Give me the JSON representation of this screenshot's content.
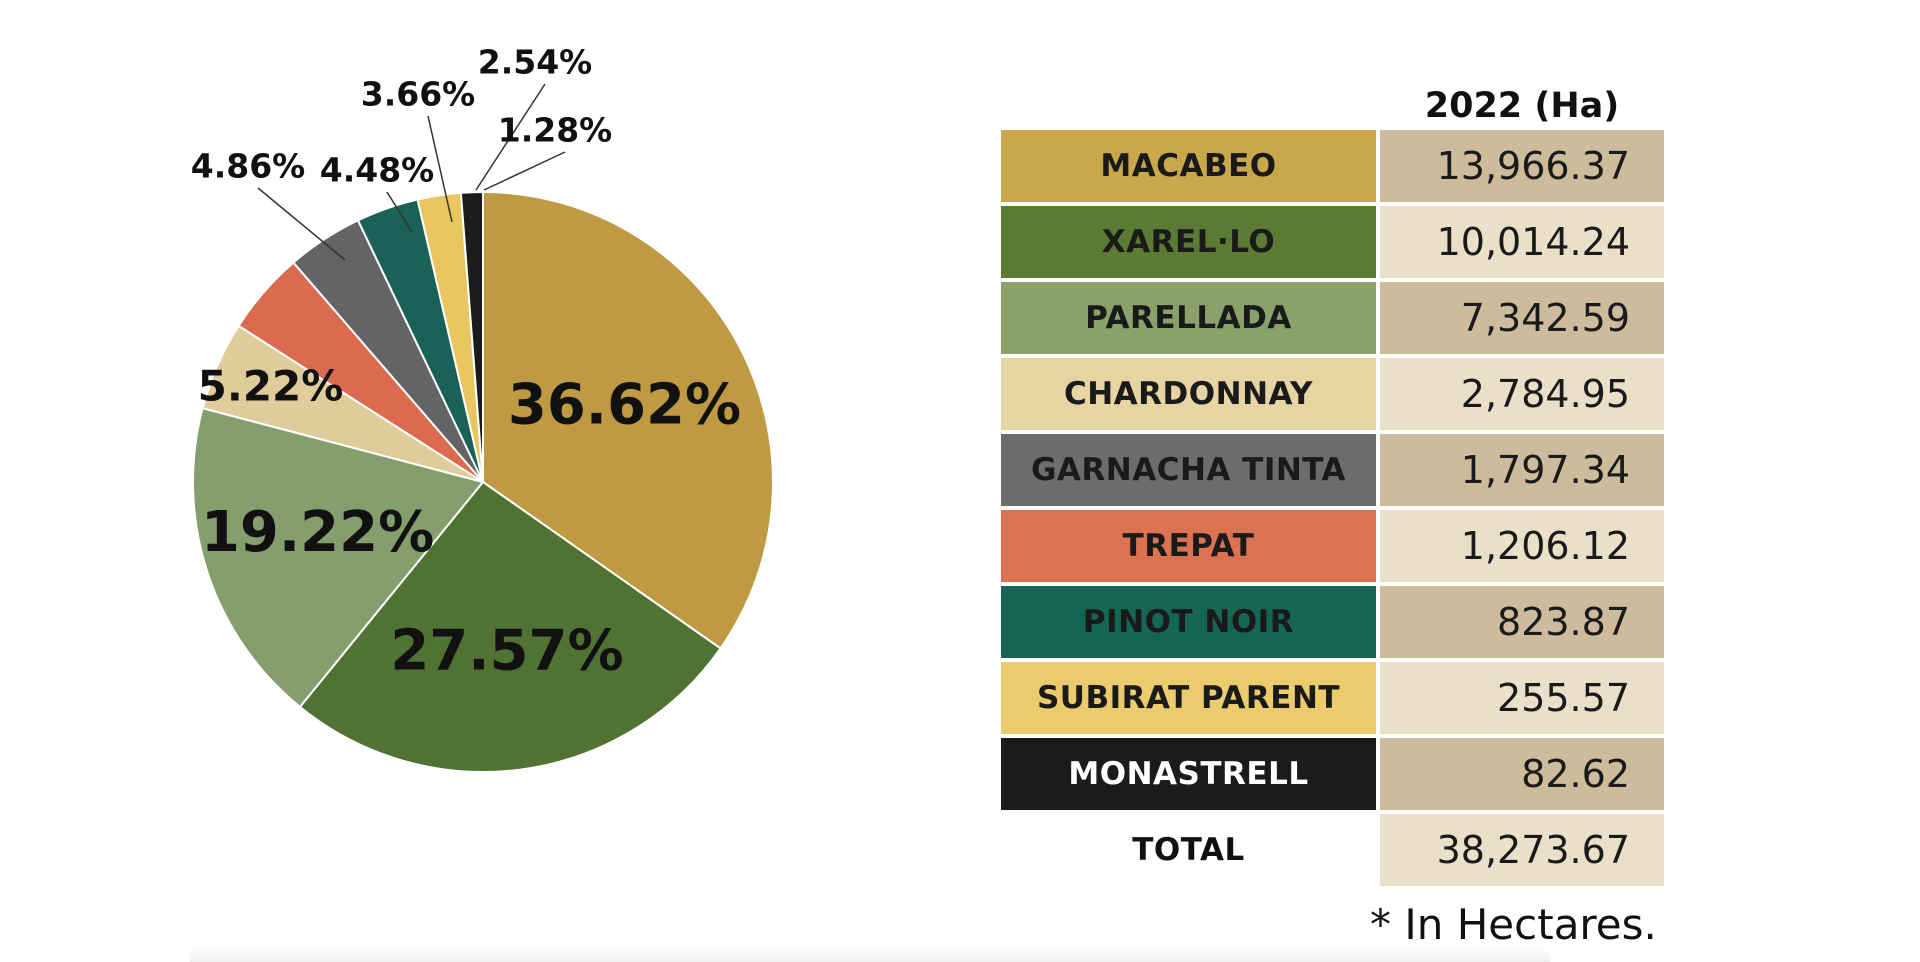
{
  "chart_data": {
    "type": "pie",
    "categories": [
      "MACABEO",
      "XAREL·LO",
      "PARELLADA",
      "CHARDONNAY",
      "GARNACHA TINTA",
      "TREPAT",
      "PINOT NOIR",
      "SUBIRAT PARENT",
      "MONASTRELL"
    ],
    "values": [
      36.62,
      27.57,
      19.22,
      5.22,
      4.86,
      4.48,
      3.66,
      2.54,
      1.28
    ],
    "value_labels": [
      "36.62%",
      "27.57%",
      "19.22%",
      "5.22%",
      "4.86%",
      "4.48%",
      "3.66%",
      "2.54%",
      "1.28%"
    ],
    "colors": [
      "#C09A42",
      "#507232",
      "#849E6E",
      "#E0CB9A",
      "#DB6A4E",
      "#636466",
      "#1A6258",
      "#E8C660",
      "#1C1C1C"
    ]
  },
  "table": {
    "year_header": "2022 (Ha)",
    "rows": [
      {
        "name": "MACABEO",
        "value": "13,966.37",
        "bg": "#C9A84B",
        "text_color": "#1a1a1a",
        "value_bg": "#CCBC9C"
      },
      {
        "name": "XAREL·LO",
        "value": "10,014.24",
        "bg": "#5B7A34",
        "text_color": "#1a1a1a",
        "value_bg": "#EADFC9"
      },
      {
        "name": "PARELLADA",
        "value": "7,342.59",
        "bg": "#8AA16C",
        "text_color": "#1a1a1a",
        "value_bg": "#CCBC9C"
      },
      {
        "name": "CHARDONNAY",
        "value": "2,784.95",
        "bg": "#E6D5A3",
        "text_color": "#1a1a1a",
        "value_bg": "#EADFC9"
      },
      {
        "name": "GARNACHA TINTA",
        "value": "1,797.34",
        "bg": "#6B6C6E",
        "text_color": "#1a1a1a",
        "value_bg": "#CCBC9C"
      },
      {
        "name": "TREPAT",
        "value": "1,206.12",
        "bg": "#DB7352",
        "text_color": "#1a1a1a",
        "value_bg": "#EADFC9"
      },
      {
        "name": "PINOT NOIR",
        "value": "823.87",
        "bg": "#156655",
        "text_color": "#1a1a1a",
        "value_bg": "#CCBC9C"
      },
      {
        "name": "SUBIRAT PARENT",
        "value": "255.57",
        "bg": "#EBCB6B",
        "text_color": "#1a1a1a",
        "value_bg": "#EADFC9"
      },
      {
        "name": "MONASTRELL",
        "value": "82.62",
        "bg": "#1C1B1B",
        "text_color": "#ffffff",
        "value_bg": "#CCBC9C"
      }
    ],
    "total": {
      "name": "TOTAL",
      "value": "38,273.67",
      "value_bg": "#EADFC9"
    }
  },
  "footnote": "* In Hectares."
}
